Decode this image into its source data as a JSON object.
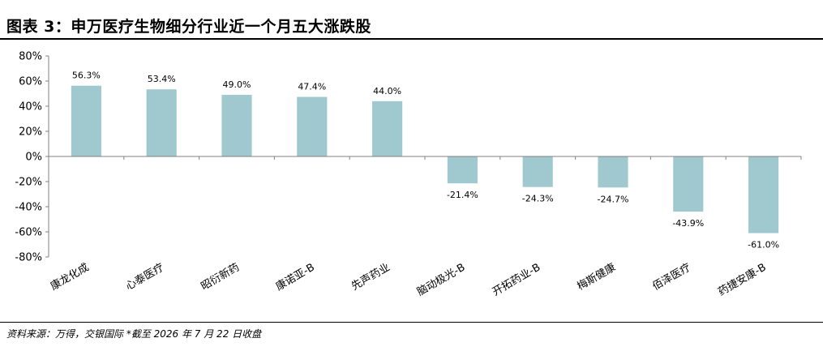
{
  "header": {
    "title": "图表 3：申万医疗生物细分行业近一个月五大涨跌股"
  },
  "footer": {
    "source": "资料来源：万得，交银国际  *截至 2026 年 7 月 22 日收盘"
  },
  "chart_data": {
    "type": "bar",
    "title": "",
    "xlabel": "",
    "ylabel": "",
    "categories": [
      "康龙化成",
      "心泰医疗",
      "昭衍新药",
      "康诺亚-B",
      "先声药业",
      "脑动极光-B",
      "开拓药业-B",
      "梅斯健康",
      "佰泽医疗",
      "药捷安康-B"
    ],
    "values": [
      56.3,
      53.4,
      49.0,
      47.4,
      44.0,
      -21.4,
      -24.3,
      -24.7,
      -43.9,
      -61.0
    ],
    "value_labels": [
      "56.3%",
      "53.4%",
      "49.0%",
      "47.4%",
      "44.0%",
      "-21.4%",
      "-24.3%",
      "-24.7%",
      "-43.9%",
      "-61.0%"
    ],
    "ylim": [
      -80,
      80
    ],
    "yticks": [
      80,
      60,
      40,
      20,
      0,
      -20,
      -40,
      -60,
      -80
    ],
    "ytick_labels": [
      "80%",
      "60%",
      "40%",
      "20%",
      "0%",
      "-20%",
      "-40%",
      "-60%",
      "-80%"
    ],
    "grid": false,
    "legend": "none",
    "bar_color": "#9FC8CF"
  }
}
